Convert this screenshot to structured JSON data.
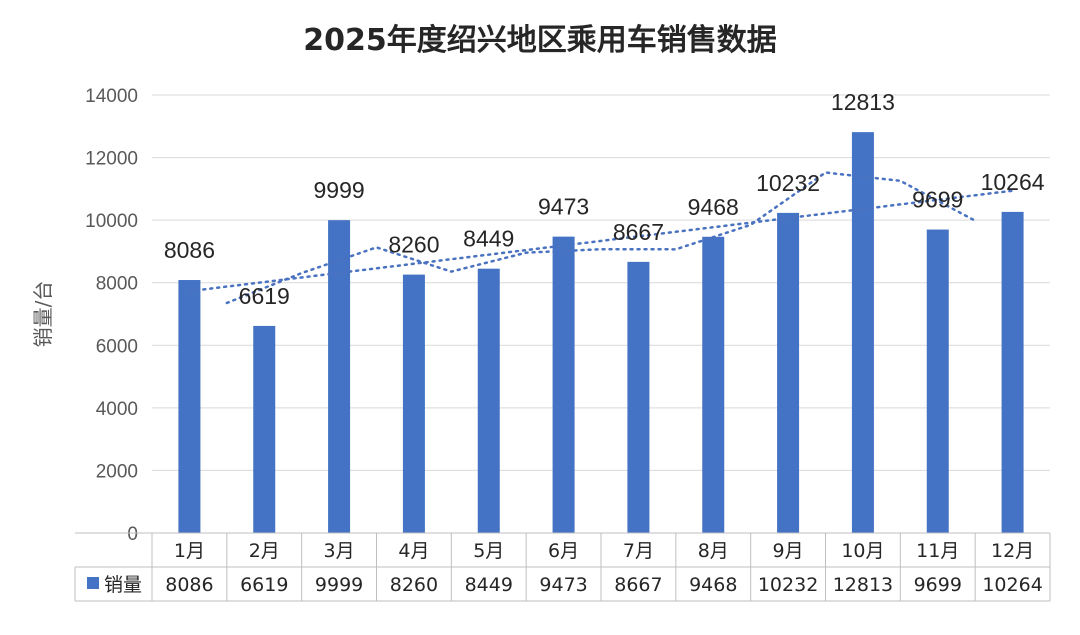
{
  "chart_data": {
    "type": "bar",
    "title": "2025年度绍兴地区乘用车销售数据",
    "ylabel": "销量/台",
    "xlabel": "",
    "categories": [
      "1月",
      "2月",
      "3月",
      "4月",
      "5月",
      "6月",
      "7月",
      "8月",
      "9月",
      "10月",
      "11月",
      "12月"
    ],
    "series": [
      {
        "name": "销量",
        "values": [
          8086,
          6619,
          9999,
          8260,
          8449,
          9473,
          8667,
          9468,
          10232,
          12813,
          9699,
          10264
        ]
      }
    ],
    "ylim": [
      0,
      14000
    ],
    "yticks": [
      0,
      2000,
      4000,
      6000,
      8000,
      10000,
      12000,
      14000
    ],
    "grid": true,
    "legend": "data-table",
    "data_table": true,
    "trendlines": [
      "moving-average",
      "linear"
    ],
    "colors": {
      "bar": "#4472c4",
      "trend": "#4a72c0"
    }
  }
}
